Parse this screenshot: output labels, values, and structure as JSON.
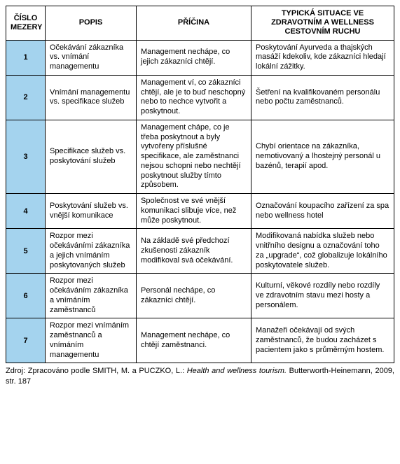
{
  "table": {
    "headers": {
      "num": "ČÍSLO MEZERY",
      "popis": "POPIS",
      "pricina": "PŘÍČINA",
      "typ": "TYPICKÁ SITUACE VE ZDRAVOTNÍM A WELLNESS CESTOVNÍM RUCHU"
    },
    "rows": [
      {
        "num": "1",
        "popis": "Očekávání zákazníka vs. vnímání managementu",
        "pricina": "Management nechápe, co jejich zákazníci chtějí.",
        "typ": "Poskytování Ayurveda a thajských masáží kdekoliv, kde zákazníci hledají lokální zážitky."
      },
      {
        "num": "2",
        "popis": "Vnímání managementu vs. specifikace služeb",
        "pricina": "Management ví, co zákazníci chtějí, ale je to buď neschopný nebo to nechce vytvořit a poskytnout.",
        "typ": "Šetření na kvalifikovaném personálu nebo počtu zaměstnanců."
      },
      {
        "num": "3",
        "popis": "Specifikace služeb vs. poskytování služeb",
        "pricina": "Management chápe, co je třeba poskytnout a byly vytvořeny příslušné specifikace, ale zaměstnanci nejsou schopni nebo nechtějí poskytnout služby tímto způsobem.",
        "typ": "Chybí orientace na zákazníka, nemotivovaný a lhostejný personál u bazénů, terapií apod."
      },
      {
        "num": "4",
        "popis": "Poskytování služeb vs. vnější komunikace",
        "pricina": "Společnost ve své vnější komunikaci slibuje více, než může poskytnout.",
        "typ": "Označování koupacího zařízení za spa nebo wellness hotel"
      },
      {
        "num": "5",
        "popis": "Rozpor mezi očekáváními zákazníka a jejich vnímáním poskytovaných služeb",
        "pricina": "Na základě své předchozí zkušenosti zákazník modifikoval svá očekávání.",
        "typ": "Modifikovaná nabídka služeb nebo vnitřního designu a označování toho za „upgrade“, což globalizuje lokálního poskytovatele služeb."
      },
      {
        "num": "6",
        "popis": "Rozpor mezi očekáváním zákazníka a vnímáním zaměstnanců",
        "pricina": "Personál nechápe, co zákazníci chtějí.",
        "typ": "Kulturní, věkové rozdíly nebo rozdíly ve zdravotním stavu mezi hosty a personálem."
      },
      {
        "num": "7",
        "popis": "Rozpor mezi vnímáním zaměstnanců a vnímáním managementu",
        "pricina": "Management nechápe, co chtějí zaměstnanci.",
        "typ": "Manažeři očekávají od svých zaměstnanců, že budou zacházet s pacientem jako s průměrným hostem."
      }
    ],
    "accent_color": "#a4d3ee"
  },
  "source": {
    "prefix": "Zdroj: Zpracováno podle SMITH, M. a PUCZKO, L.: ",
    "title": "Health and wellness tourism.",
    "suffix": " Butterworth-Heinemann, 2009, str. 187"
  }
}
